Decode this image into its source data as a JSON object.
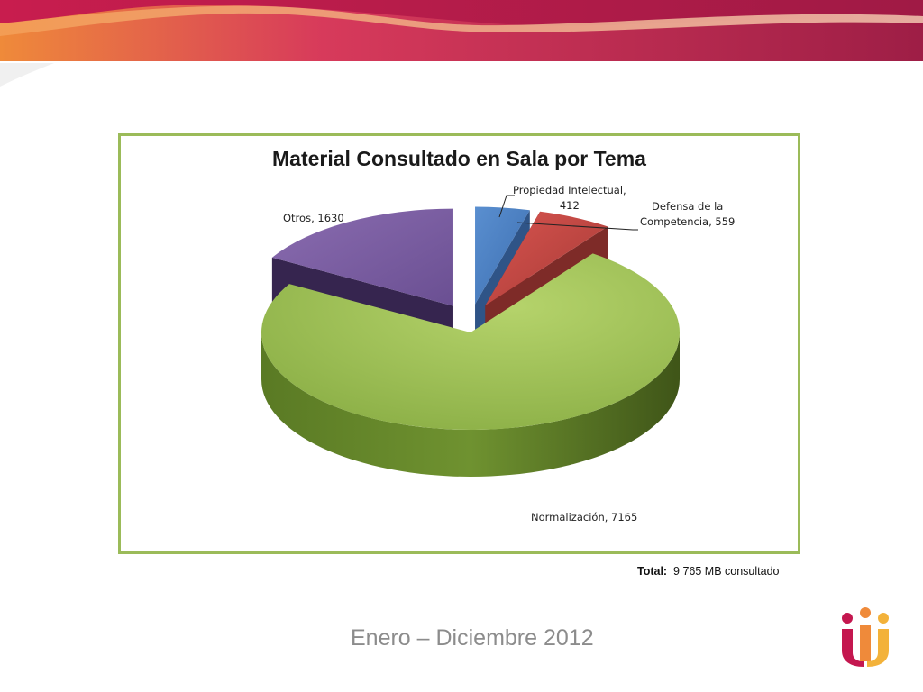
{
  "colors": {
    "frame_border": "#9bbb59",
    "banner_magenta": "#c4174f",
    "banner_orange": "#ef8a3a",
    "date_text": "#8c8c8c"
  },
  "chart_data": {
    "type": "pie",
    "title": "Material Consultado en Sala por Tema",
    "slices": [
      {
        "label": "Propiedad Intelectual",
        "value": 412,
        "color": "#4f81bd",
        "exploded": true
      },
      {
        "label": "Defensa de la Competencia",
        "value": 559,
        "color": "#c0504d",
        "exploded": true
      },
      {
        "label": "Normalización",
        "value": 7165,
        "color": "#9bbb59",
        "exploded": false
      },
      {
        "label": "Otros",
        "value": 1630,
        "color": "#8064a2",
        "exploded": true
      }
    ],
    "data_labels": {
      "propiedad": {
        "line1": "Propiedad Intelectual,",
        "line2": "412"
      },
      "defensa": {
        "line1": "Defensa de la",
        "line2": "Competencia, 559"
      },
      "normalizacion": "Normalización, 7165",
      "otros": "Otros, 1630"
    },
    "style": "3d-exploded",
    "legend": "none"
  },
  "footer": {
    "total_label": "Total:",
    "total_value": "9 765 MB consultado",
    "date_range": "Enero – Diciembre 2012"
  },
  "logo": {
    "icon": "organization-logo"
  }
}
